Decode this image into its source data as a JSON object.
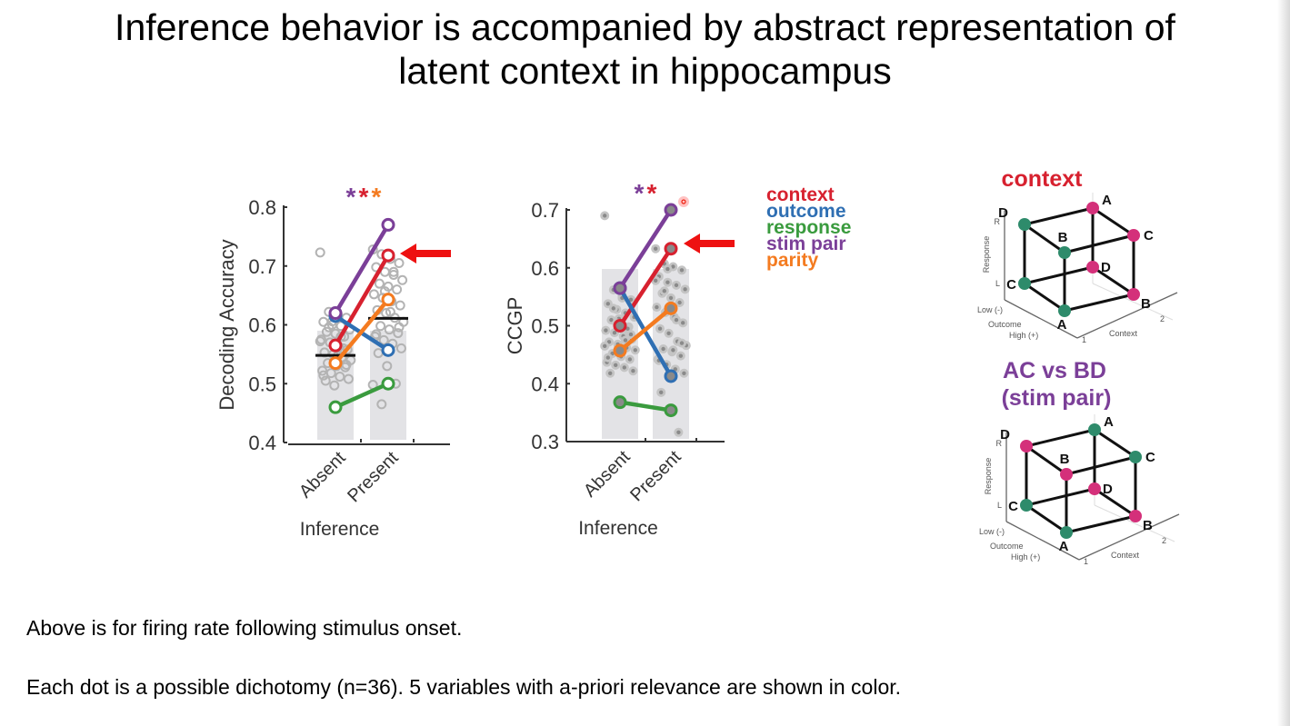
{
  "slide": {
    "title_line1": "Inference behavior is accompanied by abstract representation of",
    "title_line2": "latent context in hippocampus",
    "note1": "Above is for firing rate following stimulus onset.",
    "note2": "Each dot is a possible dichotomy (n=36). 5 variables with a-priori relevance are shown in color."
  },
  "legend": [
    {
      "label": "context",
      "color": "#d7212f"
    },
    {
      "label": "outcome",
      "color": "#2f6fb3"
    },
    {
      "label": "response",
      "color": "#3a9b3e"
    },
    {
      "label": "stim pair",
      "color": "#7b3f98"
    },
    {
      "label": "parity",
      "color": "#f47b20"
    }
  ],
  "chart_data": [
    {
      "type": "scatter",
      "title": "",
      "xlabel": "Inference",
      "ylabel": "Decoding Accuracy",
      "categories": [
        "Absent",
        "Present"
      ],
      "ylim": [
        0.4,
        0.8
      ],
      "yticks": [
        "0.4",
        "0.5",
        "0.6",
        "0.7",
        "0.8"
      ],
      "significance": [
        {
          "text": "*",
          "color": "#7b3f98"
        },
        {
          "text": "*",
          "color": "#d7212f"
        },
        {
          "text": "*",
          "color": "#f47b20"
        }
      ],
      "bars": {
        "fill_top": [
          0.59,
          0.59
        ],
        "color": "#e3e3e6"
      },
      "means": [
        0.548,
        0.611
      ],
      "series": [
        {
          "name": "context",
          "color": "#d7212f",
          "values": [
            0.565,
            0.718
          ]
        },
        {
          "name": "outcome",
          "color": "#2f6fb3",
          "values": [
            0.615,
            0.557
          ]
        },
        {
          "name": "response",
          "color": "#3a9b3e",
          "values": [
            0.46,
            0.5
          ]
        },
        {
          "name": "stim pair",
          "color": "#7b3f98",
          "values": [
            0.62,
            0.77
          ]
        },
        {
          "name": "parity",
          "color": "#f47b20",
          "values": [
            0.535,
            0.643
          ]
        }
      ],
      "dots": {
        "Absent": [
          0.723,
          0.622,
          0.618,
          0.612,
          0.605,
          0.6,
          0.598,
          0.592,
          0.588,
          0.585,
          0.58,
          0.575,
          0.57,
          0.563,
          0.558,
          0.553,
          0.55,
          0.545,
          0.54,
          0.535,
          0.53,
          0.528,
          0.522,
          0.518,
          0.512,
          0.508,
          0.505,
          0.497,
          0.56,
          0.572,
          0.596,
          0.547,
          0.532,
          0.514,
          0.606,
          0.58
        ],
        "Present": [
          0.728,
          0.72,
          0.712,
          0.705,
          0.698,
          0.69,
          0.685,
          0.676,
          0.67,
          0.665,
          0.66,
          0.652,
          0.646,
          0.64,
          0.633,
          0.625,
          0.62,
          0.612,
          0.605,
          0.598,
          0.592,
          0.586,
          0.58,
          0.574,
          0.568,
          0.56,
          0.552,
          0.53,
          0.5,
          0.498,
          0.465,
          0.622,
          0.596,
          0.584,
          0.657,
          0.69
        ]
      },
      "annotation": "red arrow pointing at context (Present)"
    },
    {
      "type": "scatter",
      "title": "",
      "xlabel": "Inference",
      "ylabel": "CCGP",
      "categories": [
        "Absent",
        "Present"
      ],
      "ylim": [
        0.3,
        0.7
      ],
      "yticks": [
        "0.3",
        "0.4",
        "0.5",
        "0.6",
        "0.7"
      ],
      "significance": [
        {
          "text": "*",
          "color": "#7b3f98"
        },
        {
          "text": "*",
          "color": "#d7212f"
        }
      ],
      "bars": {
        "fill_top": [
          0.598,
          0.598
        ],
        "color": "#e3e3e6"
      },
      "series": [
        {
          "name": "context",
          "color": "#d7212f",
          "values": [
            0.5,
            0.633
          ]
        },
        {
          "name": "outcome",
          "color": "#2f6fb3",
          "values": [
            0.565,
            0.413
          ]
        },
        {
          "name": "response",
          "color": "#3a9b3e",
          "values": [
            0.368,
            0.354
          ]
        },
        {
          "name": "stim pair",
          "color": "#7b3f98",
          "values": [
            0.565,
            0.7
          ]
        },
        {
          "name": "parity",
          "color": "#f47b20",
          "values": [
            0.457,
            0.53
          ]
        }
      ],
      "dots": {
        "Absent": [
          0.69,
          0.562,
          0.552,
          0.545,
          0.538,
          0.528,
          0.522,
          0.515,
          0.51,
          0.503,
          0.498,
          0.492,
          0.488,
          0.482,
          0.477,
          0.472,
          0.468,
          0.462,
          0.458,
          0.452,
          0.447,
          0.442,
          0.437,
          0.432,
          0.428,
          0.422,
          0.418,
          0.512,
          0.495,
          0.465,
          0.53,
          0.548,
          0.485,
          0.445,
          0.505,
          0.475
        ],
        "Present": [
          0.633,
          0.607,
          0.602,
          0.596,
          0.585,
          0.575,
          0.57,
          0.563,
          0.556,
          0.548,
          0.54,
          0.532,
          0.523,
          0.515,
          0.505,
          0.495,
          0.487,
          0.473,
          0.466,
          0.46,
          0.455,
          0.448,
          0.442,
          0.433,
          0.425,
          0.418,
          0.385,
          0.355,
          0.316,
          0.578,
          0.56,
          0.458,
          0.47,
          0.44,
          0.598,
          0.51
        ]
      },
      "annotation": "red arrow pointing at context (Present)"
    }
  ],
  "cube1": {
    "title": "context",
    "title_color": "#d7212f",
    "axes": {
      "response": "Response",
      "r": "R",
      "l": "L",
      "low": "Low (-)",
      "outcome": "Outcome",
      "high": "High (+)",
      "context": "Context",
      "c1": "1",
      "c2": "2"
    },
    "vertices": [
      {
        "label": "A",
        "pos": "back-top",
        "color": "#d4307a"
      },
      {
        "label": "C",
        "pos": "right-top",
        "color": "#d4307a"
      },
      {
        "label": "D",
        "pos": "back-bottom",
        "color": "#d4307a"
      },
      {
        "label": "B",
        "pos": "right-bottom",
        "color": "#d4307a"
      },
      {
        "label": "D",
        "pos": "left-top",
        "color": "#2e8b6b"
      },
      {
        "label": "B",
        "pos": "front-top",
        "color": "#2e8b6b"
      },
      {
        "label": "C",
        "pos": "left-bottom",
        "color": "#2e8b6b"
      },
      {
        "label": "A",
        "pos": "front-bottom",
        "color": "#2e8b6b"
      }
    ]
  },
  "cube2": {
    "title_line1": "AC vs BD",
    "title_line2": "(stim pair)",
    "title_color": "#7b3f98",
    "axes": {
      "response": "Response",
      "r": "R",
      "l": "L",
      "low": "Low (-)",
      "outcome": "Outcome",
      "high": "High (+)",
      "context": "Context",
      "c1": "1",
      "c2": "2"
    },
    "vertices": [
      {
        "label": "A",
        "pos": "back-top",
        "color": "#2e8b6b"
      },
      {
        "label": "C",
        "pos": "right-top",
        "color": "#2e8b6b"
      },
      {
        "label": "D",
        "pos": "back-bottom",
        "color": "#d4307a"
      },
      {
        "label": "B",
        "pos": "right-bottom",
        "color": "#d4307a"
      },
      {
        "label": "D",
        "pos": "left-top",
        "color": "#d4307a"
      },
      {
        "label": "B",
        "pos": "front-top",
        "color": "#d4307a"
      },
      {
        "label": "C",
        "pos": "left-bottom",
        "color": "#2e8b6b"
      },
      {
        "label": "A",
        "pos": "front-bottom",
        "color": "#2e8b6b"
      }
    ]
  }
}
